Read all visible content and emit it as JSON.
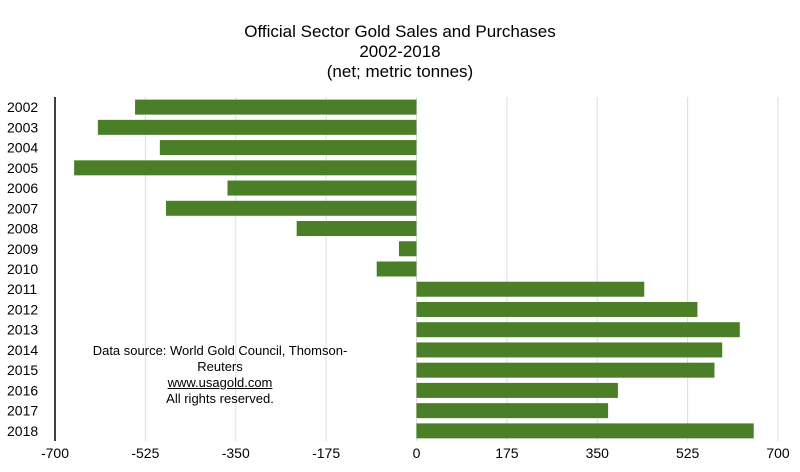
{
  "chart_data": {
    "type": "bar",
    "orientation": "horizontal",
    "title": "Official Sector Gold Sales and Purchases",
    "subtitle_lines": [
      "2002-2018",
      "(net; metric tonnes)"
    ],
    "categories": [
      "2002",
      "2003",
      "2004",
      "2005",
      "2006",
      "2007",
      "2008",
      "2009",
      "2010",
      "2011",
      "2012",
      "2013",
      "2014",
      "2015",
      "2016",
      "2017",
      "2018"
    ],
    "values": [
      -545,
      -617,
      -497,
      -663,
      -366,
      -485,
      -232,
      -34,
      -77,
      441,
      544,
      626,
      592,
      577,
      390,
      371,
      653
    ],
    "xlim": [
      -700,
      700
    ],
    "xticks": [
      "-700",
      "-525",
      "-350",
      "-175",
      "0",
      "175",
      "350",
      "525",
      "700"
    ],
    "grid": true,
    "bar_color": "#4a7f28",
    "axis_color": "#000000",
    "grid_color": "#dddddd"
  },
  "note": {
    "line1": "Data source: World Gold Council, Thomson-Reuters",
    "link": "www.usagold.com",
    "line3": "All rights reserved."
  }
}
